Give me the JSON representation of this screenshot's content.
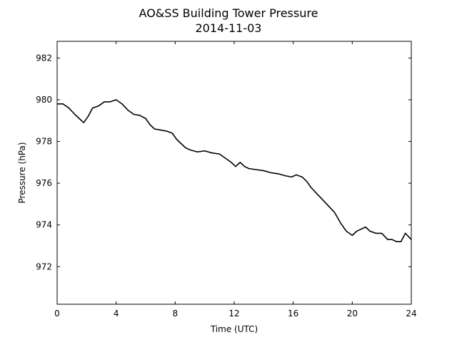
{
  "chart_data": {
    "type": "line",
    "title": "AO&SS Building Tower Pressure",
    "subtitle": "2014-11-03",
    "xlabel": "Time (UTC)",
    "ylabel": "Pressure (hPa)",
    "xlim": [
      0,
      24
    ],
    "ylim": [
      970.2,
      982.8
    ],
    "x_ticks": [
      0,
      4,
      8,
      12,
      16,
      20,
      24
    ],
    "y_ticks": [
      972,
      974,
      976,
      978,
      980,
      982
    ],
    "grid": false,
    "legend": "none",
    "line_color": "#000000",
    "series": [
      {
        "x": [
          0.0,
          0.4,
          0.8,
          1.2,
          1.5,
          1.8,
          2.1,
          2.4,
          2.8,
          3.2,
          3.6,
          4.0,
          4.4,
          4.8,
          5.2,
          5.6,
          6.0,
          6.3,
          6.6,
          7.0,
          7.4,
          7.8,
          8.1,
          8.4,
          8.7,
          9.0,
          9.5,
          10.0,
          10.5,
          11.0,
          11.4,
          11.8,
          12.1,
          12.4,
          12.7,
          13.0,
          13.5,
          14.0,
          14.5,
          15.0,
          15.5,
          15.9,
          16.2,
          16.6,
          16.9,
          17.2,
          17.6,
          18.0,
          18.4,
          18.8,
          19.2,
          19.6,
          20.0,
          20.3,
          20.6,
          20.9,
          21.2,
          21.6,
          22.0,
          22.4,
          22.7,
          23.0,
          23.3,
          23.6,
          24.0
        ],
        "values": [
          979.8,
          979.8,
          979.6,
          979.3,
          979.1,
          978.9,
          979.2,
          979.6,
          979.7,
          979.9,
          979.9,
          980.0,
          979.8,
          979.5,
          979.3,
          979.25,
          979.1,
          978.8,
          978.6,
          978.55,
          978.5,
          978.4,
          978.1,
          977.9,
          977.7,
          977.6,
          977.5,
          977.55,
          977.45,
          977.4,
          977.2,
          977.0,
          976.8,
          977.0,
          976.8,
          976.7,
          976.65,
          976.6,
          976.5,
          976.45,
          976.35,
          976.3,
          976.4,
          976.3,
          976.1,
          975.8,
          975.5,
          975.2,
          974.9,
          974.6,
          974.1,
          973.7,
          973.5,
          973.7,
          973.8,
          973.9,
          973.7,
          973.6,
          973.6,
          973.3,
          973.3,
          973.2,
          973.2,
          973.6,
          973.3
        ]
      }
    ]
  }
}
